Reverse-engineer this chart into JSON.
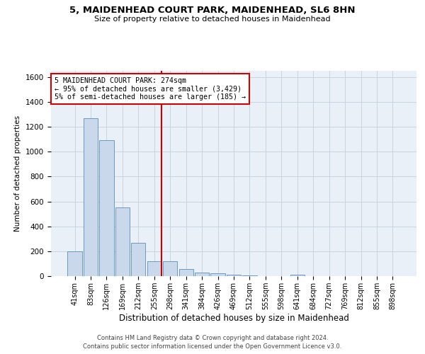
{
  "title_line1": "5, MAIDENHEAD COURT PARK, MAIDENHEAD, SL6 8HN",
  "title_line2": "Size of property relative to detached houses in Maidenhead",
  "xlabel": "Distribution of detached houses by size in Maidenhead",
  "ylabel": "Number of detached properties",
  "footer_line1": "Contains HM Land Registry data © Crown copyright and database right 2024.",
  "footer_line2": "Contains public sector information licensed under the Open Government Licence v3.0.",
  "categories": [
    "41sqm",
    "83sqm",
    "126sqm",
    "169sqm",
    "212sqm",
    "255sqm",
    "298sqm",
    "341sqm",
    "384sqm",
    "426sqm",
    "469sqm",
    "512sqm",
    "555sqm",
    "598sqm",
    "641sqm",
    "684sqm",
    "727sqm",
    "769sqm",
    "812sqm",
    "855sqm",
    "898sqm"
  ],
  "values": [
    197,
    1270,
    1090,
    550,
    265,
    118,
    118,
    55,
    30,
    20,
    14,
    3,
    0,
    0,
    14,
    0,
    0,
    0,
    0,
    0,
    0
  ],
  "bar_color": "#c9d9eb",
  "bar_edge_color": "#5b8db8",
  "grid_color": "#c8d4e3",
  "background_color": "#eaf0f8",
  "vline_color": "#cc0000",
  "vline_pos": 5.45,
  "annotation_text": "5 MAIDENHEAD COURT PARK: 274sqm\n← 95% of detached houses are smaller (3,429)\n5% of semi-detached houses are larger (185) →",
  "annotation_box_color": "#cc0000",
  "ylim": [
    0,
    1650
  ],
  "yticks": [
    0,
    200,
    400,
    600,
    800,
    1000,
    1200,
    1400,
    1600
  ]
}
